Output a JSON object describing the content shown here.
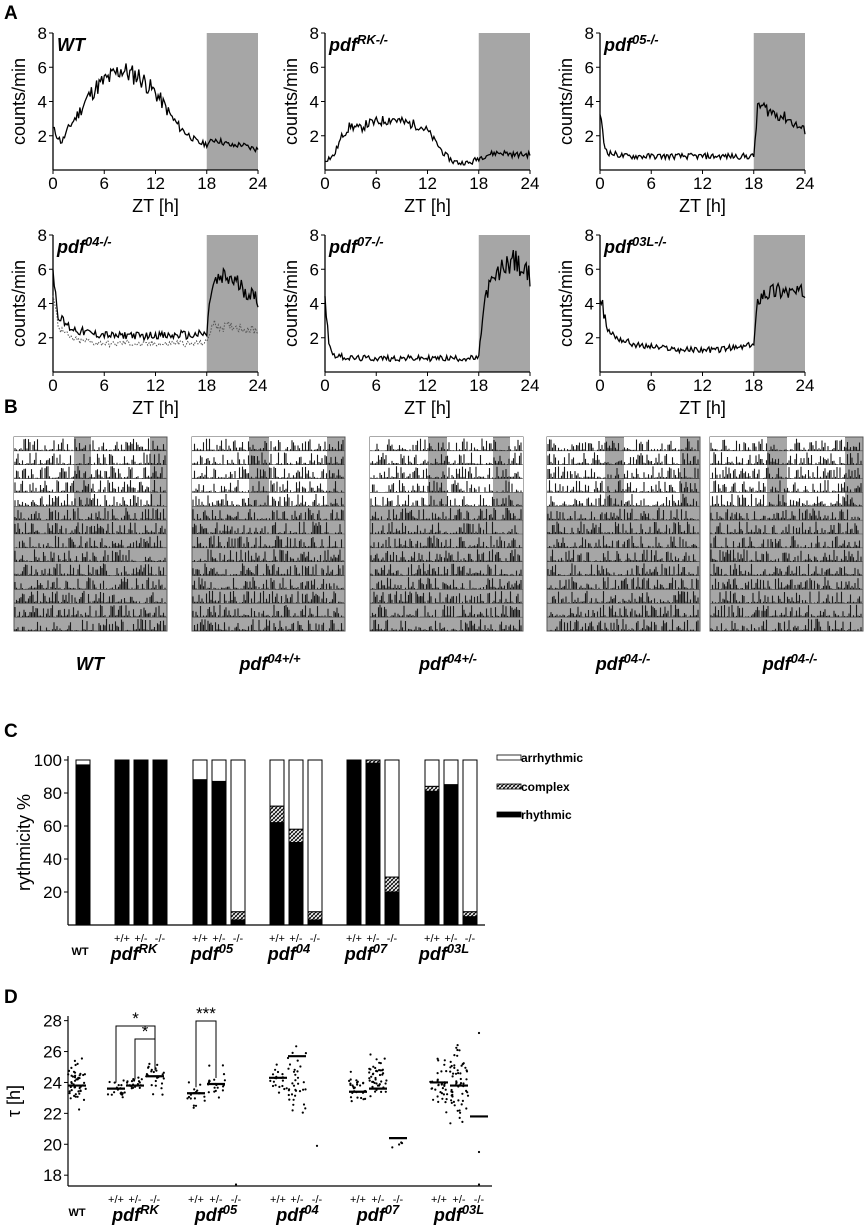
{
  "panels": {
    "A": "A",
    "B": "B",
    "C": "C",
    "D": "D"
  },
  "chart_data": [
    {
      "type": "line",
      "panel": "A",
      "xlabel": "ZT [h]",
      "ylabel": "counts/min",
      "xticks": [
        "0",
        "6",
        "12",
        "18",
        "24"
      ],
      "yticks": [
        "2",
        "4",
        "6",
        "8"
      ],
      "xlim": [
        0,
        24
      ],
      "ylim": [
        0,
        8
      ],
      "shaded_range": [
        18,
        24
      ],
      "colors": {
        "line": "#000000",
        "shade": "#a6a6a6"
      },
      "plots": [
        {
          "label": {
            "base": "WT",
            "sup": ""
          },
          "x": [
            0,
            1,
            2,
            3,
            4,
            5,
            6,
            7,
            8,
            9,
            10,
            11,
            12,
            13,
            14,
            15,
            16,
            17,
            18,
            19,
            20,
            21,
            22,
            23,
            24
          ],
          "y": [
            2.4,
            1.6,
            2.6,
            3.3,
            4.2,
            4.8,
            5.2,
            5.5,
            5.9,
            5.6,
            5.5,
            5.0,
            4.5,
            3.8,
            3.0,
            2.4,
            2.0,
            1.6,
            1.5,
            1.8,
            1.6,
            1.4,
            1.5,
            1.3,
            1.2
          ]
        },
        {
          "label": {
            "base": "pdf",
            "sup": "RK-/-"
          },
          "x": [
            0,
            1,
            2,
            3,
            4,
            5,
            6,
            7,
            8,
            9,
            10,
            11,
            12,
            13,
            14,
            15,
            16,
            17,
            18,
            19,
            20,
            21,
            22,
            23,
            24
          ],
          "y": [
            0.6,
            0.8,
            2.0,
            2.6,
            2.4,
            2.7,
            2.8,
            2.9,
            3.0,
            2.8,
            2.7,
            2.6,
            2.3,
            1.6,
            0.9,
            0.5,
            0.4,
            0.4,
            0.7,
            0.9,
            1.0,
            1.0,
            0.9,
            0.9,
            0.9
          ]
        },
        {
          "label": {
            "base": "pdf",
            "sup": "05-/-"
          },
          "x": [
            0,
            0.5,
            1,
            2,
            3,
            4,
            5,
            6,
            7,
            8,
            9,
            10,
            11,
            12,
            13,
            14,
            15,
            16,
            17,
            18,
            18.5,
            19,
            20,
            21,
            22,
            23,
            24
          ],
          "y": [
            3.4,
            1.4,
            1.0,
            0.9,
            0.8,
            0.8,
            0.8,
            0.8,
            0.8,
            0.8,
            0.8,
            0.8,
            0.8,
            0.8,
            0.8,
            0.8,
            0.8,
            0.8,
            0.8,
            0.8,
            3.8,
            3.7,
            3.4,
            3.2,
            3.0,
            2.6,
            2.3
          ]
        },
        {
          "label": {
            "base": "pdf",
            "sup": "04-/-"
          },
          "x": [
            0,
            0.5,
            1,
            2,
            3,
            4,
            5,
            6,
            7,
            8,
            9,
            10,
            11,
            12,
            13,
            14,
            15,
            16,
            17,
            18,
            18.5,
            19,
            20,
            21,
            22,
            23,
            24
          ],
          "y": [
            6.0,
            3.6,
            3.0,
            2.6,
            2.4,
            2.3,
            2.2,
            2.2,
            2.1,
            2.1,
            2.2,
            2.1,
            2.1,
            2.2,
            2.1,
            2.1,
            2.2,
            2.1,
            2.2,
            2.2,
            4.8,
            5.2,
            5.5,
            5.4,
            5.0,
            4.6,
            4.2
          ],
          "y_dotted": [
            4.8,
            3.0,
            2.4,
            2.0,
            1.8,
            1.8,
            1.7,
            1.7,
            1.6,
            1.7,
            1.7,
            1.6,
            1.6,
            1.7,
            1.6,
            1.7,
            1.7,
            1.6,
            1.7,
            1.7,
            2.6,
            2.8,
            2.6,
            2.7,
            2.6,
            2.5,
            2.4
          ]
        },
        {
          "label": {
            "base": "pdf",
            "sup": "07-/-"
          },
          "x": [
            0,
            0.5,
            1,
            2,
            3,
            4,
            5,
            6,
            7,
            8,
            9,
            10,
            11,
            12,
            13,
            14,
            15,
            16,
            17,
            18,
            18.5,
            19,
            20,
            21,
            22,
            23,
            24
          ],
          "y": [
            4.4,
            1.5,
            1.0,
            0.9,
            0.8,
            0.8,
            0.8,
            0.8,
            0.8,
            0.8,
            0.8,
            0.8,
            0.8,
            0.8,
            0.8,
            0.8,
            0.8,
            0.8,
            0.8,
            0.8,
            3.5,
            4.8,
            5.5,
            6.2,
            6.6,
            6.0,
            5.6
          ]
        },
        {
          "label": {
            "base": "pdf",
            "sup": "03L-/-"
          },
          "x": [
            0,
            0.5,
            1,
            2,
            3,
            4,
            5,
            6,
            7,
            8,
            9,
            10,
            11,
            12,
            13,
            14,
            15,
            16,
            17,
            18,
            18.5,
            19,
            20,
            21,
            22,
            23,
            24
          ],
          "y": [
            4.7,
            3.2,
            2.4,
            2.0,
            1.8,
            1.6,
            1.5,
            1.5,
            1.4,
            1.4,
            1.3,
            1.3,
            1.3,
            1.3,
            1.3,
            1.3,
            1.4,
            1.4,
            1.5,
            1.6,
            4.3,
            4.6,
            4.7,
            4.8,
            4.7,
            4.6,
            4.6
          ]
        }
      ]
    },
    {
      "type": "other",
      "panel": "B",
      "description_labels": [
        {
          "base": "WT",
          "sup": ""
        },
        {
          "base": "pdf",
          "sup": "04+/+"
        },
        {
          "base": "pdf",
          "sup": "04+/-"
        },
        {
          "base": "pdf",
          "sup": "04-/-"
        },
        {
          "base": "pdf",
          "sup": "04-/-"
        }
      ],
      "colors": {
        "shade": "#a6a6a6",
        "bars": "#1a1a1a"
      },
      "rows": 14,
      "ld_rows": 5
    },
    {
      "type": "bar",
      "panel": "C",
      "ylabel": "rythmicity %",
      "yticks": [
        "20",
        "40",
        "60",
        "80",
        "100"
      ],
      "ylim": [
        0,
        100
      ],
      "legend": [
        "arrhythmic",
        "complex",
        "rhythmic"
      ],
      "legend_position": "right",
      "genotype_groups": [
        {
          "name": {
            "base": "WT",
            "sup": ""
          },
          "categories": [
            ""
          ]
        },
        {
          "name": {
            "base": "pdf",
            "sup": "RK"
          },
          "categories": [
            "+/+",
            "+/-",
            "-/-"
          ]
        },
        {
          "name": {
            "base": "pdf",
            "sup": "05"
          },
          "categories": [
            "+/+",
            "+/-",
            "-/-"
          ]
        },
        {
          "name": {
            "base": "pdf",
            "sup": "04"
          },
          "categories": [
            "+/+",
            "+/-",
            "-/-"
          ]
        },
        {
          "name": {
            "base": "pdf",
            "sup": "07"
          },
          "categories": [
            "+/+",
            "+/-",
            "-/-"
          ]
        },
        {
          "name": {
            "base": "pdf",
            "sup": "03L"
          },
          "categories": [
            "+/+",
            "+/-",
            "-/-"
          ]
        }
      ],
      "bars": [
        {
          "group": 0,
          "rhythmic": 97,
          "complex": 0,
          "arrhythmic": 3
        },
        {
          "group": 1,
          "rhythmic": 100,
          "complex": 0,
          "arrhythmic": 0
        },
        {
          "group": 1,
          "rhythmic": 100,
          "complex": 0,
          "arrhythmic": 0
        },
        {
          "group": 1,
          "rhythmic": 100,
          "complex": 0,
          "arrhythmic": 0
        },
        {
          "group": 2,
          "rhythmic": 88,
          "complex": 0,
          "arrhythmic": 12
        },
        {
          "group": 2,
          "rhythmic": 87,
          "complex": 0,
          "arrhythmic": 13
        },
        {
          "group": 2,
          "rhythmic": 3,
          "complex": 5,
          "arrhythmic": 92
        },
        {
          "group": 3,
          "rhythmic": 62,
          "complex": 10,
          "arrhythmic": 28
        },
        {
          "group": 3,
          "rhythmic": 50,
          "complex": 8,
          "arrhythmic": 42
        },
        {
          "group": 3,
          "rhythmic": 3,
          "complex": 5,
          "arrhythmic": 92
        },
        {
          "group": 4,
          "rhythmic": 100,
          "complex": 0,
          "arrhythmic": 0
        },
        {
          "group": 4,
          "rhythmic": 98,
          "complex": 2,
          "arrhythmic": 0
        },
        {
          "group": 4,
          "rhythmic": 20,
          "complex": 9,
          "arrhythmic": 71
        },
        {
          "group": 5,
          "rhythmic": 81,
          "complex": 3,
          "arrhythmic": 16
        },
        {
          "group": 5,
          "rhythmic": 85,
          "complex": 0,
          "arrhythmic": 15
        },
        {
          "group": 5,
          "rhythmic": 5,
          "complex": 3,
          "arrhythmic": 92
        }
      ],
      "colors": {
        "rhythmic": "#000000",
        "arrhythmic": "#ffffff",
        "complex": "hatch"
      }
    },
    {
      "type": "scatter",
      "panel": "D",
      "ylabel": "τ [h]",
      "yticks": [
        "18",
        "20",
        "22",
        "24",
        "26",
        "28"
      ],
      "ylim": [
        17.3,
        28.3
      ],
      "significance": [
        {
          "from": 1,
          "to": 3,
          "label": "*"
        },
        {
          "from": 2,
          "to": 3,
          "label": "*"
        },
        {
          "from": 4,
          "to": 5,
          "label": "***"
        }
      ],
      "columns": [
        {
          "group": 0,
          "median": 23.8,
          "spread": [
            21.8,
            26.2
          ],
          "n": 50
        },
        {
          "group": 1,
          "median": 23.6,
          "spread": [
            22.8,
            24.3
          ],
          "n": 18
        },
        {
          "group": 1,
          "median": 23.8,
          "spread": [
            23.2,
            24.6
          ],
          "n": 20
        },
        {
          "group": 1,
          "median": 24.4,
          "spread": [
            23.0,
            25.8
          ],
          "n": 25
        },
        {
          "group": 2,
          "median": 23.3,
          "spread": [
            21.8,
            24.3
          ],
          "n": 18
        },
        {
          "group": 2,
          "median": 23.9,
          "spread": [
            22.4,
            25.6
          ],
          "n": 20
        },
        {
          "group": 2,
          "median": null,
          "outliers": [
            17.4
          ],
          "n": 1
        },
        {
          "group": 3,
          "median": 24.3,
          "spread": [
            23.0,
            25.7
          ],
          "n": 20
        },
        {
          "group": 3,
          "median": 25.7,
          "spread": [
            20.5,
            27.2
          ],
          "n": 35
        },
        {
          "group": 3,
          "median": null,
          "outliers": [
            19.9
          ],
          "n": 1
        },
        {
          "group": 4,
          "median": 23.4,
          "spread": [
            21.8,
            25.0
          ],
          "n": 28
        },
        {
          "group": 4,
          "median": 23.6,
          "spread": [
            22.0,
            26.4
          ],
          "n": 45
        },
        {
          "group": 4,
          "median": 20.4,
          "spread": [
            19.5,
            20.5
          ],
          "n": 4
        },
        {
          "group": 5,
          "median": 24.0,
          "spread": [
            21.0,
            26.4
          ],
          "n": 35
        },
        {
          "group": 5,
          "median": 23.8,
          "spread": [
            20.6,
            27.4
          ],
          "n": 60
        },
        {
          "group": 5,
          "median": 21.8,
          "outliers": [
            27.2,
            19.5,
            17.4
          ],
          "n": 3
        }
      ]
    }
  ]
}
